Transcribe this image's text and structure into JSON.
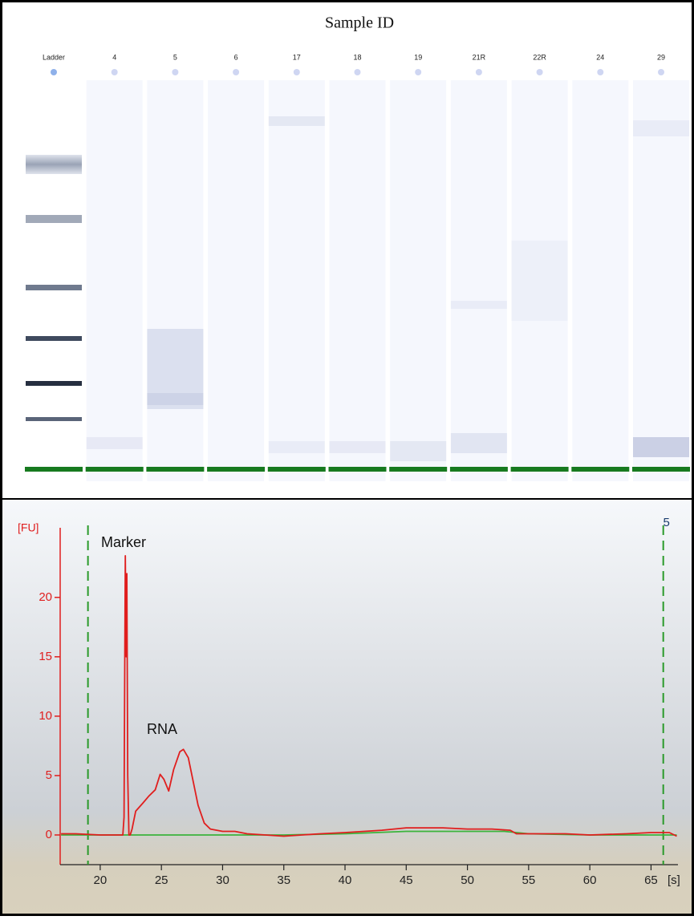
{
  "gel": {
    "title": "Sample ID",
    "lanes": [
      "Ladder",
      "4",
      "5",
      "6",
      "17",
      "18",
      "19",
      "21R",
      "22R",
      "24",
      "29"
    ]
  },
  "chart_data": {
    "type": "line",
    "y_label": "[FU]",
    "x_label": "[s]",
    "annotations": [
      "Marker",
      "RNA"
    ],
    "marker_label": "5",
    "dashed_lines": [
      19,
      66
    ],
    "dashed_color": "#2a9a2a",
    "xlim": [
      16.73,
      67.2
    ],
    "ylim": [
      -2.5,
      26.4
    ],
    "xticks": [
      20,
      25,
      30,
      35,
      40,
      45,
      50,
      55,
      60,
      65
    ],
    "yticks": [
      0,
      5,
      10,
      15,
      20
    ],
    "series": [
      {
        "color": "#e01e1e",
        "x": [
          16.8,
          18,
          20,
          21.5,
          21.85,
          21.95,
          22.0,
          22.05,
          22.12,
          22.18,
          22.25,
          22.35,
          22.45,
          22.6,
          22.9,
          23.5,
          24,
          24.5,
          24.9,
          25.2,
          25.6,
          26,
          26.5,
          26.8,
          27.2,
          27.6,
          28,
          28.5,
          29,
          30,
          31,
          32,
          35,
          38,
          40,
          43,
          45,
          48,
          50,
          52,
          53.5,
          54,
          58,
          60,
          63,
          65,
          66.5,
          67.1
        ],
        "values": [
          0.1,
          0.1,
          0,
          0,
          0,
          1.5,
          13,
          23.5,
          15,
          22,
          5,
          0,
          0,
          0.5,
          2,
          2.7,
          3.3,
          3.8,
          5.1,
          4.7,
          3.7,
          5.5,
          7,
          7.2,
          6.5,
          4.5,
          2.5,
          1,
          0.5,
          0.3,
          0.3,
          0.1,
          -0.1,
          0.1,
          0.2,
          0.4,
          0.6,
          0.6,
          0.5,
          0.5,
          0.4,
          0.1,
          0.1,
          0,
          0.1,
          0.2,
          0.2,
          -0.1
        ]
      },
      {
        "color": "#3cb43c",
        "x": [
          16.8,
          22,
          30,
          35,
          40,
          45,
          50,
          53,
          55,
          60,
          67.1
        ],
        "values": [
          0,
          0,
          0,
          0,
          0.1,
          0.3,
          0.3,
          0.3,
          0.1,
          0,
          0
        ]
      }
    ]
  }
}
